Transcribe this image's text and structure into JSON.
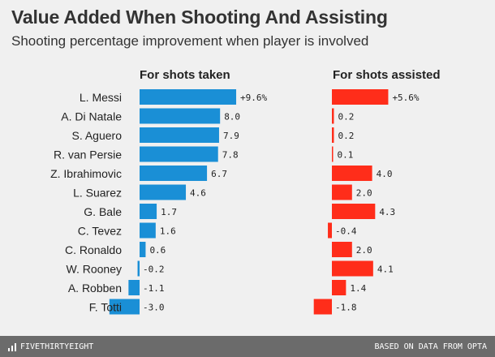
{
  "chart_data": {
    "type": "bar",
    "title": "Value Added When Shooting And Assisting",
    "subtitle": "Shooting percentage improvement when player is involved",
    "categories": [
      "L. Messi",
      "A. Di Natale",
      "S. Aguero",
      "R. van Persie",
      "Z. Ibrahimovic",
      "L. Suarez",
      "G. Bale",
      "C. Tevez",
      "C. Ronaldo",
      "W. Rooney",
      "A. Robben",
      "F. Totti"
    ],
    "series": [
      {
        "name": "For shots taken",
        "color": "#1a8fd6",
        "values": [
          9.6,
          8.0,
          7.9,
          7.8,
          6.7,
          4.6,
          1.7,
          1.6,
          0.6,
          -0.2,
          -1.1,
          -3.0
        ],
        "labels": [
          "+9.6%",
          "8.0",
          "7.9",
          "7.8",
          "6.7",
          "4.6",
          "1.7",
          "1.6",
          "0.6",
          "-0.2",
          "-1.1",
          "-3.0"
        ]
      },
      {
        "name": "For shots assisted",
        "color": "#ff2d1a",
        "values": [
          5.6,
          0.2,
          0.2,
          0.1,
          4.0,
          2.0,
          4.3,
          -0.4,
          2.0,
          4.1,
          1.4,
          -1.8
        ],
        "labels": [
          "+5.6%",
          "0.2",
          "0.2",
          "0.1",
          "4.0",
          "2.0",
          "4.3",
          "-0.4",
          "2.0",
          "4.1",
          "1.4",
          "-1.8"
        ]
      }
    ],
    "legend": "none",
    "grid": false
  },
  "footer": {
    "brand": "FIVETHIRTYEIGHT",
    "source": "BASED ON DATA FROM OPTA"
  }
}
